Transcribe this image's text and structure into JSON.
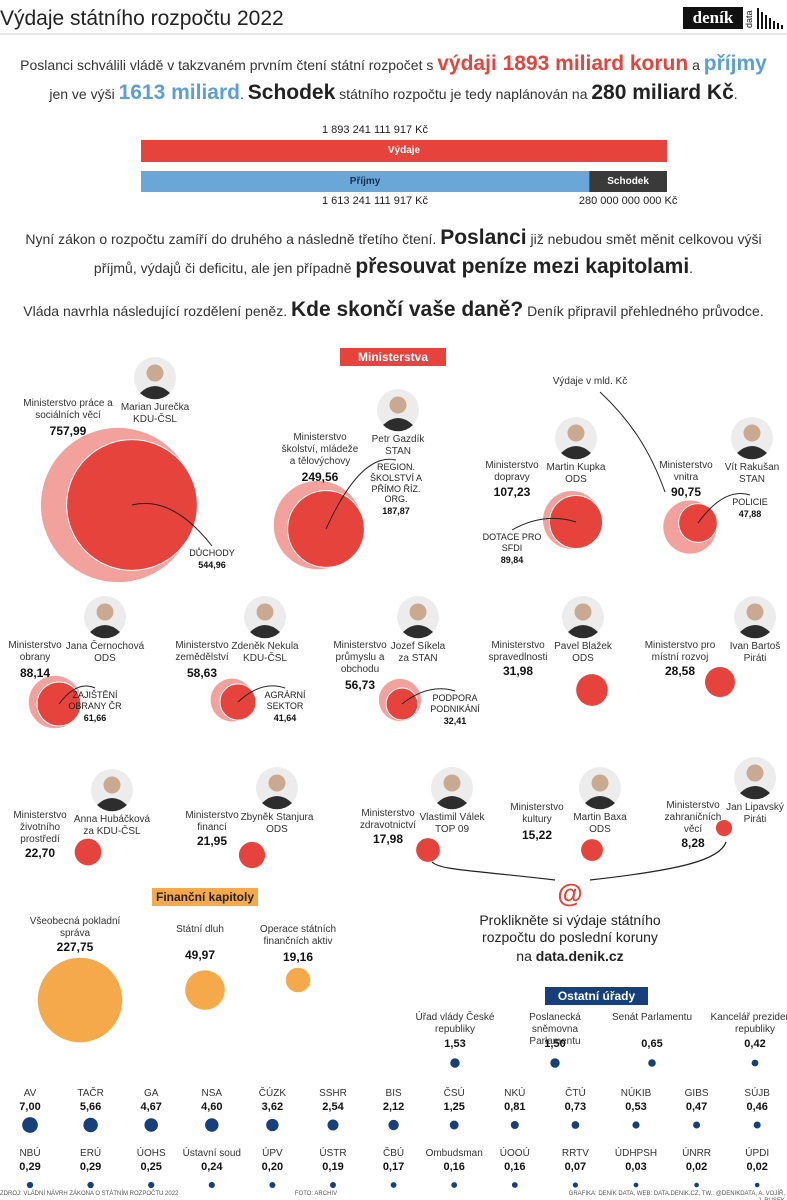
{
  "header": {
    "title": "Výdaje státního rozpočtu 2022",
    "logo": "deník",
    "logo_sub": "data"
  },
  "intro": [
    {
      "text": "Poslanci schválili vládě v takzvaném prvním čtení státní rozpočet s "
    },
    {
      "text": "výdaji 1893 miliard korun",
      "style": "red"
    },
    {
      "text": " a "
    },
    {
      "text": "příjmy",
      "style": "blue"
    },
    {
      "text": " jen ve výši "
    },
    {
      "text": "1613 miliard",
      "style": "blue"
    },
    {
      "text": ". "
    },
    {
      "text": "Schodek",
      "style": "bold"
    },
    {
      "text": " státního rozpočtu je tedy naplánován na "
    },
    {
      "text": "280 miliard Kč",
      "style": "bold"
    },
    {
      "text": "."
    }
  ],
  "budget": {
    "expenses": {
      "name": "Výdaje",
      "value": 1893241111917,
      "label": "1 893 241 111 917 Kč",
      "color": "#e5433b"
    },
    "income": {
      "name": "Příjmy",
      "value": 1613241111917,
      "label": "1 613 241 111 917 Kč",
      "color": "#6aa7d8"
    },
    "deficit": {
      "name": "Schodek",
      "value": 280000000000,
      "label": "280 000 000 000 Kč",
      "color": "#3a3a3a"
    }
  },
  "paragraph2": [
    {
      "text": "Nyní zákon o rozpočtu zamíří do druhého a následně třetího čtení. "
    },
    {
      "text": "Poslanci",
      "style": "bold"
    },
    {
      "text": " již nebudou smět měnit celkovou výši příjmů, výdajů či deficitu, ale jen případně "
    },
    {
      "text": "přesouvat peníze mezi kapitolami",
      "style": "bold"
    },
    {
      "text": "."
    }
  ],
  "paragraph3": [
    {
      "text": "Vláda navrhla následující rozdělení peněz. "
    },
    {
      "text": "Kde skončí vaše daně?",
      "style": "bold"
    },
    {
      "text": " Deník připravil přehledného průvodce."
    }
  ],
  "ministries": {
    "heading": "Ministerstva",
    "unit_note": "Výdaje v mld. Kč",
    "color": "#e5433b",
    "items": [
      {
        "name": "Ministerstvo práce a sociálních věcí",
        "person": "Marian Jurečka",
        "party": "KDU-ČSL",
        "value": 757.99,
        "value_label": "757,99",
        "sub": {
          "name": "DŮCHODY",
          "value": 544.96,
          "value_label": "544,96"
        }
      },
      {
        "name": "Ministerstvo školství, mládeže a tělovýchovy",
        "person": "Petr Gazdík",
        "party": "STAN",
        "value": 249.56,
        "value_label": "249,56",
        "sub": {
          "name": "REGION. ŠKOLSTVÍ A PŘÍMO ŘÍZ. ORG.",
          "value": 187.87,
          "value_label": "187,87"
        }
      },
      {
        "name": "Ministerstvo dopravy",
        "person": "Martin Kupka",
        "party": "ODS",
        "value": 107.23,
        "value_label": "107,23",
        "sub": {
          "name": "DOTACE PRO SFDI",
          "value": 89.84,
          "value_label": "89,84"
        }
      },
      {
        "name": "Ministerstvo vnitra",
        "person": "Vít Rakušan",
        "party": "STAN",
        "value": 90.75,
        "value_label": "90,75",
        "sub": {
          "name": "POLICIE",
          "value": 47.88,
          "value_label": "47,88"
        }
      },
      {
        "name": "Ministerstvo obrany",
        "person": "Jana Černochová",
        "party": "ODS",
        "value": 88.14,
        "value_label": "88,14",
        "sub": {
          "name": "ZAJIŠTĚNÍ OBRANY ČR",
          "value": 61.66,
          "value_label": "61,66"
        }
      },
      {
        "name": "Ministerstvo zemědělství",
        "person": "Zdeněk Nekula",
        "party": "KDU-ČSL",
        "value": 58.63,
        "value_label": "58,63",
        "sub": {
          "name": "AGRÁRNÍ SEKTOR",
          "value": 41.64,
          "value_label": "41,64"
        }
      },
      {
        "name": "Ministerstvo průmyslu a obchodu",
        "person": "Jozef Síkela",
        "party": "za STAN",
        "value": 56.73,
        "value_label": "56,73",
        "sub": {
          "name": "PODPORA PODNIKÁNÍ",
          "value": 32.41,
          "value_label": "32,41"
        }
      },
      {
        "name": "Ministerstvo spravedlnosti",
        "person": "Pavel Blažek",
        "party": "ODS",
        "value": 31.98,
        "value_label": "31,98"
      },
      {
        "name": "Ministerstvo pro místní rozvoj",
        "person": "Ivan Bartoš",
        "party": "Piráti",
        "value": 28.58,
        "value_label": "28,58"
      },
      {
        "name": "Ministerstvo životního prostředí",
        "person": "Anna Hubáčková",
        "party": "za KDU-ČSL",
        "value": 22.7,
        "value_label": "22,70"
      },
      {
        "name": "Ministerstvo financí",
        "person": "Zbyněk Stanjura",
        "party": "ODS",
        "value": 21.95,
        "value_label": "21,95"
      },
      {
        "name": "Ministerstvo zdravotnictví",
        "person": "Vlastimil Válek",
        "party": "TOP 09",
        "value": 17.98,
        "value_label": "17,98"
      },
      {
        "name": "Ministerstvo kultury",
        "person": "Martin Baxa",
        "party": "ODS",
        "value": 15.22,
        "value_label": "15,22"
      },
      {
        "name": "Ministerstvo zahraničních věcí",
        "person": "Jan Lipavský",
        "party": "Piráti",
        "value": 8.28,
        "value_label": "8,28"
      }
    ]
  },
  "financial": {
    "heading": "Finanční kapitoly",
    "color": "#f5a94a",
    "items": [
      {
        "name": "Všeobecná pokladní správa",
        "value": 227.75,
        "value_label": "227,75"
      },
      {
        "name": "Státní dluh",
        "value": 49.97,
        "value_label": "49,97"
      },
      {
        "name": "Operace státních finančních aktiv",
        "value": 19.16,
        "value_label": "19,16"
      }
    ]
  },
  "callout": {
    "icon": "@",
    "text": "Proklikněte si výdaje státního rozpočtu do poslední koruny",
    "link_prefix": "na",
    "link": "data.denik.cz"
  },
  "offices": {
    "heading": "Ostatní úřady",
    "color": "#163f7c",
    "rows": [
      [
        {
          "name": "Úřad vlády České republiky",
          "value": 1.53,
          "value_label": "1,53"
        },
        {
          "name": "Poslanecká sněmovna Parlamentu",
          "value": 1.5,
          "value_label": "1,50"
        },
        {
          "name": "Senát Parlamentu",
          "value": 0.65,
          "value_label": "0,65"
        },
        {
          "name": "Kancelář prezidenta republiky",
          "value": 0.42,
          "value_label": "0,42"
        }
      ],
      [
        {
          "name": "AV",
          "value": 7.0,
          "value_label": "7,00"
        },
        {
          "name": "TAČR",
          "value": 5.66,
          "value_label": "5,66"
        },
        {
          "name": "GA",
          "value": 4.67,
          "value_label": "4,67"
        },
        {
          "name": "NSA",
          "value": 4.6,
          "value_label": "4,60"
        },
        {
          "name": "ČÚZK",
          "value": 3.62,
          "value_label": "3,62"
        },
        {
          "name": "SSHR",
          "value": 2.54,
          "value_label": "2,54"
        },
        {
          "name": "BIS",
          "value": 2.12,
          "value_label": "2,12"
        },
        {
          "name": "ČSÚ",
          "value": 1.25,
          "value_label": "1,25"
        },
        {
          "name": "NKÚ",
          "value": 0.81,
          "value_label": "0,81"
        },
        {
          "name": "ČTÚ",
          "value": 0.73,
          "value_label": "0,73"
        },
        {
          "name": "NÚKIB",
          "value": 0.53,
          "value_label": "0,53"
        },
        {
          "name": "GIBS",
          "value": 0.47,
          "value_label": "0,47"
        },
        {
          "name": "SÚJB",
          "value": 0.46,
          "value_label": "0,46"
        }
      ],
      [
        {
          "name": "NBÚ",
          "value": 0.29,
          "value_label": "0,29"
        },
        {
          "name": "ERÚ",
          "value": 0.29,
          "value_label": "0,29"
        },
        {
          "name": "ÚOHS",
          "value": 0.25,
          "value_label": "0,25"
        },
        {
          "name": "Ústavní soud",
          "value": 0.24,
          "value_label": "0,24"
        },
        {
          "name": "ÚPV",
          "value": 0.2,
          "value_label": "0,20"
        },
        {
          "name": "ÚSTR",
          "value": 0.19,
          "value_label": "0,19"
        },
        {
          "name": "ČBÚ",
          "value": 0.17,
          "value_label": "0,17"
        },
        {
          "name": "Ombudsman",
          "value": 0.16,
          "value_label": "0,16"
        },
        {
          "name": "ÚOOÚ",
          "value": 0.16,
          "value_label": "0,16"
        },
        {
          "name": "RRTV",
          "value": 0.07,
          "value_label": "0,07"
        },
        {
          "name": "ÚDHPSH",
          "value": 0.03,
          "value_label": "0,03"
        },
        {
          "name": "ÚNRR",
          "value": 0.02,
          "value_label": "0,02"
        },
        {
          "name": "ÚPDI",
          "value": 0.02,
          "value_label": "0,02"
        }
      ]
    ]
  },
  "footer": {
    "source": "ZDROJ: VLÁDNÍ NÁVRH ZÁKONA O STÁTNÍM ROZPOČTU 2022",
    "photo": "FOTO: ARCHIV",
    "credits": "GRAFIKA: DENÍK DATA, WEB: DATA.DENIK.CZ, TW.: @DENIKDATA, A. VOJÍŘ, J. RUSEK"
  }
}
